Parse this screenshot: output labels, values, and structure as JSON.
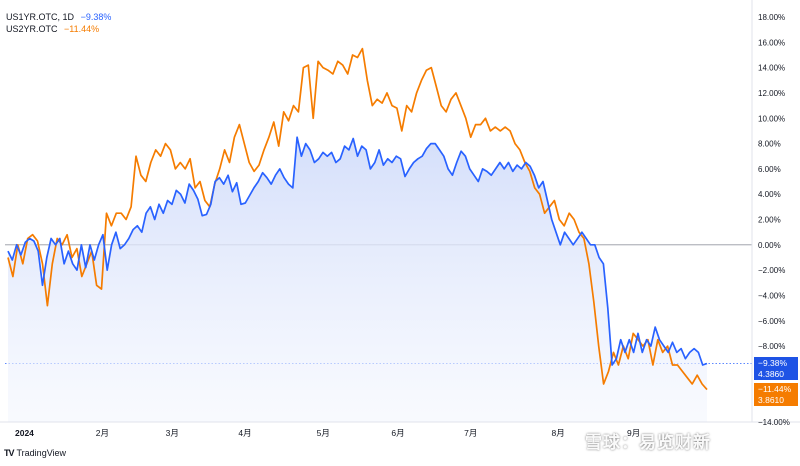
{
  "legend": {
    "series1": {
      "symbol": "US1YR.OTC",
      "interval": "1D",
      "change": "−9.38%"
    },
    "series2": {
      "symbol": "US2YR.OTC",
      "interval": "",
      "change": "−11.44%"
    }
  },
  "badges": {
    "blue": {
      "change": "−9.38%",
      "value": "4.3860"
    },
    "orange": {
      "change": "−11.44%",
      "value": "3.8610"
    }
  },
  "branding": {
    "logo_text": "TradingView",
    "watermark": "雪球：易览财新"
  },
  "colors": {
    "blue": "#2962ff",
    "orange": "#f57c00",
    "fill": "#dde6fb"
  },
  "chart_data": {
    "type": "line",
    "y_axis": {
      "min": -14,
      "max": 18,
      "step": 2,
      "unit": "%",
      "side": "right"
    },
    "y_ticks": [
      "18.00%",
      "16.00%",
      "14.00%",
      "12.00%",
      "10.00%",
      "8.00%",
      "6.00%",
      "4.00%",
      "2.00%",
      "0.00%",
      "−2.00%",
      "−4.00%",
      "−6.00%",
      "−8.00%",
      "−10.00%",
      "−12.00%",
      "−14.00%"
    ],
    "x_ticks": [
      {
        "label": "2024",
        "t": 0.01
      },
      {
        "label": "2月",
        "t": 0.135
      },
      {
        "label": "3月",
        "t": 0.235
      },
      {
        "label": "4月",
        "t": 0.339
      },
      {
        "label": "5月",
        "t": 0.451
      },
      {
        "label": "6月",
        "t": 0.558
      },
      {
        "label": "7月",
        "t": 0.662
      },
      {
        "label": "8月",
        "t": 0.787
      },
      {
        "label": "9月",
        "t": 0.895
      }
    ],
    "baseline": 0,
    "series": [
      {
        "name": "US1YR.OTC",
        "color": "#2962ff",
        "last": -9.38,
        "values": [
          -0.5,
          -1.2,
          0.0,
          -0.8,
          0.2,
          0.5,
          0.3,
          -0.5,
          -3.2,
          -1.0,
          0.5,
          0.0,
          0.5,
          -1.5,
          -0.5,
          -1.5,
          -2.0,
          0.0,
          -1.8,
          0.0,
          -1.2,
          0.0,
          0.8,
          -2.0,
          0.0,
          1.0,
          -0.3,
          0.0,
          0.5,
          1.2,
          1.5,
          1.0,
          2.5,
          3.0,
          2.0,
          3.2,
          2.5,
          3.5,
          3.2,
          4.3,
          4.0,
          3.3,
          4.8,
          4.3,
          3.6,
          2.3,
          2.4,
          3.2,
          5.0,
          5.3,
          4.8,
          5.5,
          4.2,
          4.9,
          3.2,
          3.3,
          3.9,
          4.5,
          5.0,
          5.7,
          5.3,
          4.8,
          5.5,
          6.0,
          5.3,
          4.8,
          4.5,
          8.5,
          7.0,
          8.0,
          7.5,
          6.5,
          6.8,
          7.3,
          7.0,
          7.3,
          6.5,
          6.8,
          7.8,
          7.5,
          8.4,
          7.0,
          7.8,
          7.5,
          6.0,
          6.5,
          7.5,
          6.3,
          6.8,
          6.5,
          7.0,
          6.8,
          5.4,
          6.0,
          6.5,
          6.8,
          7.0,
          7.6,
          8.0,
          8.0,
          7.5,
          7.0,
          6.0,
          5.5,
          6.5,
          7.4,
          7.0,
          6.0,
          5.5,
          5.0,
          6.0,
          5.8,
          5.5,
          6.0,
          6.5,
          6.0,
          6.5,
          5.8,
          6.3,
          6.0,
          6.5,
          6.2,
          5.5,
          4.5,
          5.0,
          3.5,
          2.0,
          1.0,
          0.0,
          1.0,
          0.5,
          0.0,
          0.5,
          1.0,
          0.5,
          0.0,
          0.0,
          -1.0,
          -1.5,
          -5.0,
          -9.5,
          -9.0,
          -7.5,
          -8.5,
          -7.5,
          -8.5,
          -7.0,
          -8.5,
          -7.5,
          -8.0,
          -6.5,
          -7.5,
          -8.0,
          -8.5,
          -7.7,
          -8.5,
          -8.2,
          -9.0,
          -8.5,
          -8.2,
          -8.5,
          -9.5,
          -9.38
        ]
      },
      {
        "name": "US2YR.OTC",
        "color": "#f57c00",
        "last": -11.44,
        "values": [
          -1.0,
          -2.5,
          0.0,
          -1.5,
          0.5,
          0.8,
          0.3,
          -1.5,
          -4.8,
          -1.5,
          0.5,
          0.0,
          0.8,
          -1.0,
          -0.3,
          -2.5,
          -1.5,
          -0.5,
          -3.2,
          -3.5,
          2.5,
          1.5,
          2.5,
          2.5,
          2.0,
          3.0,
          7.0,
          5.5,
          5.0,
          6.5,
          7.5,
          7.0,
          8.0,
          7.5,
          6.0,
          6.5,
          6.0,
          6.8,
          4.5,
          5.0,
          3.5,
          3.0,
          4.8,
          6.0,
          7.5,
          6.5,
          8.5,
          9.5,
          8.0,
          6.5,
          5.8,
          6.3,
          7.5,
          8.5,
          9.7,
          7.8,
          10.5,
          9.8,
          11.0,
          10.5,
          14.0,
          14.2,
          10.0,
          14.5,
          14.0,
          13.8,
          13.5,
          14.5,
          14.2,
          13.5,
          15.0,
          14.8,
          15.5,
          13.0,
          11.0,
          11.5,
          11.2,
          12.0,
          11.0,
          10.8,
          9.0,
          11.0,
          10.5,
          12.0,
          13.0,
          13.8,
          14.0,
          12.5,
          11.0,
          10.5,
          11.5,
          12.0,
          11.0,
          10.0,
          8.5,
          9.5,
          9.5,
          10.0,
          9.0,
          9.3,
          9.0,
          9.3,
          9.0,
          8.0,
          7.5,
          6.5,
          5.8,
          4.5,
          4.0,
          2.5,
          3.0,
          3.5,
          2.0,
          1.5,
          2.5,
          2.0,
          1.0,
          0.5,
          -1.5,
          -4.5,
          -8.0,
          -11.0,
          -10.0,
          -8.5,
          -9.5,
          -8.0,
          -9.0,
          -7.0,
          -7.5,
          -8.0,
          -7.5,
          -9.5,
          -7.5,
          -8.5,
          -8.0,
          -9.5,
          -9.5,
          -10.0,
          -10.5,
          -11.0,
          -10.3,
          -11.0,
          -11.44
        ]
      }
    ]
  }
}
